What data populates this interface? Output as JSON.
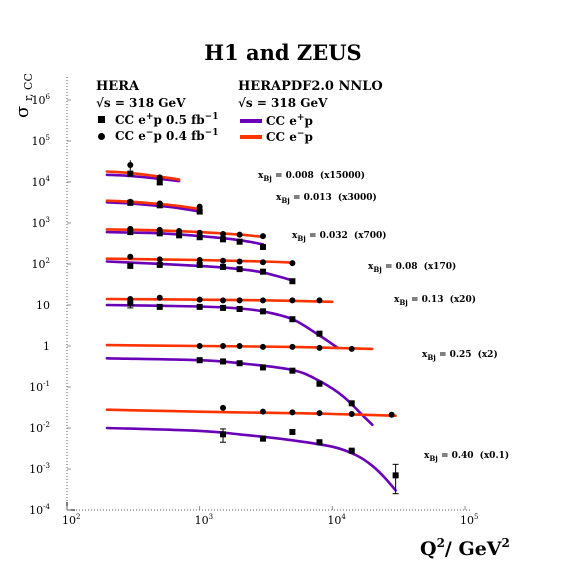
{
  "chart_data": {
    "type": "scatter",
    "title": "H1 and ZEUS",
    "ylabel_main": "σ",
    "ylabel_sub": "r, CC",
    "xlabel": "Q",
    "xlabel_sup": "2",
    "xlabel_unit": "/ GeV",
    "xlabel_unit_sup": "2",
    "xscale": "log",
    "yscale": "log",
    "xlim": [
      100,
      100000
    ],
    "ylim": [
      0.0001,
      1000000
    ],
    "grid": false,
    "x_ticks": [
      {
        "value": 100,
        "base": "10",
        "exp": "2"
      },
      {
        "value": 1000,
        "base": "10",
        "exp": "3"
      },
      {
        "value": 10000,
        "base": "10",
        "exp": "4"
      },
      {
        "value": 100000,
        "base": "10",
        "exp": "5"
      }
    ],
    "y_ticks": [
      {
        "value": 0.0001,
        "base": "10",
        "exp": "-4"
      },
      {
        "value": 0.001,
        "base": "10",
        "exp": "-3"
      },
      {
        "value": 0.01,
        "base": "10",
        "exp": "-2"
      },
      {
        "value": 0.1,
        "base": "10",
        "exp": "-1"
      },
      {
        "value": 1,
        "base": "1",
        "exp": ""
      },
      {
        "value": 10,
        "base": "10",
        "exp": ""
      },
      {
        "value": 100,
        "base": "10",
        "exp": "2"
      },
      {
        "value": 1000,
        "base": "10",
        "exp": "3"
      },
      {
        "value": 10000,
        "base": "10",
        "exp": "4"
      },
      {
        "value": 100000,
        "base": "10",
        "exp": "5"
      },
      {
        "value": 1000000,
        "base": "10",
        "exp": "6"
      }
    ],
    "legend": {
      "placement": "top-left",
      "data_title": "HERA",
      "data_energy": "√s = 318 GeV",
      "data_entries": [
        {
          "marker": "square",
          "pre": "CC e",
          "sup": "+",
          "post": "p 0.5 fb",
          "post_sup": "−1"
        },
        {
          "marker": "circle",
          "pre": "CC e",
          "sup": "−",
          "post": "p 0.4 fb",
          "post_sup": "−1"
        }
      ],
      "theory_title": "HERAPDF2.0 NNLO",
      "theory_energy": "√s = 318 GeV",
      "theory_entries": [
        {
          "color": "#6a00b8",
          "pre": "CC e",
          "sup": "+",
          "post": "p"
        },
        {
          "color": "#ff3300",
          "pre": "CC e",
          "sup": "−",
          "post": "p"
        }
      ]
    },
    "colors": {
      "eplus": "#6a00b8",
      "eminus": "#ff3300",
      "data": "#000000"
    },
    "bins": [
      {
        "label_x": "x",
        "label_sub": "Bj",
        "label_value": " = 0.008",
        "label_scale": "(x15000)",
        "eminus_curve": {
          "x": [
            200,
            300,
            500,
            700
          ],
          "y": [
            18000,
            16500,
            13500,
            11500
          ]
        },
        "eplus_curve": {
          "x": [
            200,
            300,
            500,
            700
          ],
          "y": [
            15000,
            14000,
            12000,
            10500
          ]
        },
        "eminus_points": [
          {
            "x": 300,
            "y": 26000,
            "yerr": [
              19000,
              34000
            ]
          },
          {
            "x": 500,
            "y": 13000
          }
        ],
        "eplus_points": [
          {
            "x": 300,
            "y": 16000
          },
          {
            "x": 500,
            "y": 10000,
            "yerr": [
              8500,
              12000
            ]
          }
        ]
      },
      {
        "label_x": "x",
        "label_sub": "Bj",
        "label_value": " = 0.013",
        "label_scale": "(x3000)",
        "eminus_curve": {
          "x": [
            200,
            300,
            500,
            700,
            1000
          ],
          "y": [
            3500,
            3300,
            2900,
            2600,
            2200
          ]
        },
        "eplus_curve": {
          "x": [
            200,
            300,
            500,
            700,
            1000
          ],
          "y": [
            3200,
            3000,
            2600,
            2300,
            1900
          ]
        },
        "eminus_points": [
          {
            "x": 300,
            "y": 3300
          },
          {
            "x": 500,
            "y": 3000
          },
          {
            "x": 1000,
            "y": 2500
          }
        ],
        "eplus_points": [
          {
            "x": 300,
            "y": 3100
          },
          {
            "x": 500,
            "y": 2700
          },
          {
            "x": 1000,
            "y": 1900
          }
        ]
      },
      {
        "label_x": "x",
        "label_sub": "Bj",
        "label_value": " = 0.032",
        "label_scale": "(x700)",
        "eminus_curve": {
          "x": [
            200,
            500,
            1000,
            2000,
            3000
          ],
          "y": [
            700,
            660,
            600,
            520,
            460
          ]
        },
        "eplus_curve": {
          "x": [
            200,
            500,
            1000,
            2000,
            3000
          ],
          "y": [
            600,
            560,
            480,
            380,
            300
          ]
        },
        "eminus_points": [
          {
            "x": 300,
            "y": 720
          },
          {
            "x": 500,
            "y": 680
          },
          {
            "x": 700,
            "y": 640
          },
          {
            "x": 1000,
            "y": 580
          },
          {
            "x": 1500,
            "y": 540
          },
          {
            "x": 2000,
            "y": 520
          },
          {
            "x": 3000,
            "y": 480
          }
        ],
        "eplus_points": [
          {
            "x": 300,
            "y": 600
          },
          {
            "x": 500,
            "y": 560
          },
          {
            "x": 700,
            "y": 500
          },
          {
            "x": 1000,
            "y": 450
          },
          {
            "x": 1500,
            "y": 400
          },
          {
            "x": 2000,
            "y": 350
          },
          {
            "x": 3000,
            "y": 260
          }
        ]
      },
      {
        "label_x": "x",
        "label_sub": "Bj",
        "label_value": " = 0.08",
        "label_scale": "(x170)",
        "eminus_curve": {
          "x": [
            200,
            1000,
            3000,
            5000
          ],
          "y": [
            135,
            125,
            115,
            108
          ]
        },
        "eplus_curve": {
          "x": [
            200,
            1000,
            2000,
            3000,
            5000
          ],
          "y": [
            115,
            90,
            75,
            62,
            40
          ]
        },
        "eminus_points": [
          {
            "x": 300,
            "y": 150
          },
          {
            "x": 500,
            "y": 130
          },
          {
            "x": 1000,
            "y": 125
          },
          {
            "x": 1500,
            "y": 120
          },
          {
            "x": 2000,
            "y": 115
          },
          {
            "x": 3000,
            "y": 110
          },
          {
            "x": 5000,
            "y": 105
          }
        ],
        "eplus_points": [
          {
            "x": 300,
            "y": 90
          },
          {
            "x": 500,
            "y": 95
          },
          {
            "x": 1000,
            "y": 95
          },
          {
            "x": 1500,
            "y": 85
          },
          {
            "x": 2000,
            "y": 75
          },
          {
            "x": 3000,
            "y": 65
          },
          {
            "x": 5000,
            "y": 38
          }
        ]
      },
      {
        "label_x": "x",
        "label_sub": "Bj",
        "label_value": " = 0.13",
        "label_scale": "(x20)",
        "eminus_curve": {
          "x": [
            200,
            1000,
            3000,
            10000
          ],
          "y": [
            14,
            13.5,
            13,
            12
          ]
        },
        "eplus_curve": {
          "x": [
            200,
            1000,
            2000,
            3000,
            5000,
            8000,
            11000
          ],
          "y": [
            10,
            9.2,
            8.2,
            7,
            4.5,
            1.8,
            0.9
          ]
        },
        "eminus_points": [
          {
            "x": 300,
            "y": 14
          },
          {
            "x": 500,
            "y": 15
          },
          {
            "x": 1000,
            "y": 13.5
          },
          {
            "x": 1500,
            "y": 13
          },
          {
            "x": 2000,
            "y": 13
          },
          {
            "x": 3000,
            "y": 13
          },
          {
            "x": 5000,
            "y": 13
          },
          {
            "x": 8000,
            "y": 13
          }
        ],
        "eplus_points": [
          {
            "x": 300,
            "y": 11,
            "yerr": [
              8.5,
              14
            ]
          },
          {
            "x": 500,
            "y": 9
          },
          {
            "x": 1000,
            "y": 9
          },
          {
            "x": 1500,
            "y": 8.5
          },
          {
            "x": 2000,
            "y": 8
          },
          {
            "x": 3000,
            "y": 7
          },
          {
            "x": 5000,
            "y": 4.5
          },
          {
            "x": 8000,
            "y": 2
          }
        ]
      },
      {
        "label_x": "x",
        "label_sub": "Bj",
        "label_value": " = 0.25",
        "label_scale": "(x2)",
        "eminus_curve": {
          "x": [
            200,
            1000,
            5000,
            20000
          ],
          "y": [
            1.05,
            1,
            0.95,
            0.85
          ]
        },
        "eplus_curve": {
          "x": [
            200,
            1000,
            2000,
            5000,
            8000,
            12000,
            17000,
            20000
          ],
          "y": [
            0.5,
            0.45,
            0.38,
            0.26,
            0.14,
            0.06,
            0.02,
            0.012
          ]
        },
        "eminus_points": [
          {
            "x": 1000,
            "y": 1
          },
          {
            "x": 1500,
            "y": 1
          },
          {
            "x": 2000,
            "y": 1
          },
          {
            "x": 3000,
            "y": 0.95
          },
          {
            "x": 5000,
            "y": 0.95
          },
          {
            "x": 8000,
            "y": 0.9
          },
          {
            "x": 14000,
            "y": 0.85
          }
        ],
        "eplus_points": [
          {
            "x": 1000,
            "y": 0.45
          },
          {
            "x": 1500,
            "y": 0.42
          },
          {
            "x": 2000,
            "y": 0.38
          },
          {
            "x": 3000,
            "y": 0.3
          },
          {
            "x": 5000,
            "y": 0.25
          },
          {
            "x": 8000,
            "y": 0.12
          },
          {
            "x": 14000,
            "y": 0.04
          }
        ]
      },
      {
        "label_x": "x",
        "label_sub": "Bj",
        "label_value": " = 0.40",
        "label_scale": "(x0.1)",
        "eminus_curve": {
          "x": [
            200,
            1000,
            5000,
            10000,
            30000
          ],
          "y": [
            0.028,
            0.025,
            0.023,
            0.022,
            0.02
          ]
        },
        "eplus_curve": {
          "x": [
            200,
            1000,
            2000,
            5000,
            10000,
            15000,
            20000,
            25000,
            30000
          ],
          "y": [
            0.01,
            0.0085,
            0.007,
            0.005,
            0.0035,
            0.0022,
            0.0012,
            0.0006,
            0.0003
          ]
        },
        "eminus_points": [
          {
            "x": 1500,
            "y": 0.031
          },
          {
            "x": 3000,
            "y": 0.025
          },
          {
            "x": 5000,
            "y": 0.024
          },
          {
            "x": 8000,
            "y": 0.023
          },
          {
            "x": 14000,
            "y": 0.022
          },
          {
            "x": 28000,
            "y": 0.021
          }
        ],
        "eplus_points": [
          {
            "x": 1500,
            "y": 0.007,
            "yerr": [
              0.0045,
              0.0095
            ]
          },
          {
            "x": 3000,
            "y": 0.0055
          },
          {
            "x": 5000,
            "y": 0.008
          },
          {
            "x": 8000,
            "y": 0.0045
          },
          {
            "x": 14000,
            "y": 0.0028
          },
          {
            "x": 30000,
            "y": 0.0007,
            "yerr": [
              0.00025,
              0.0013
            ]
          }
        ]
      }
    ]
  }
}
